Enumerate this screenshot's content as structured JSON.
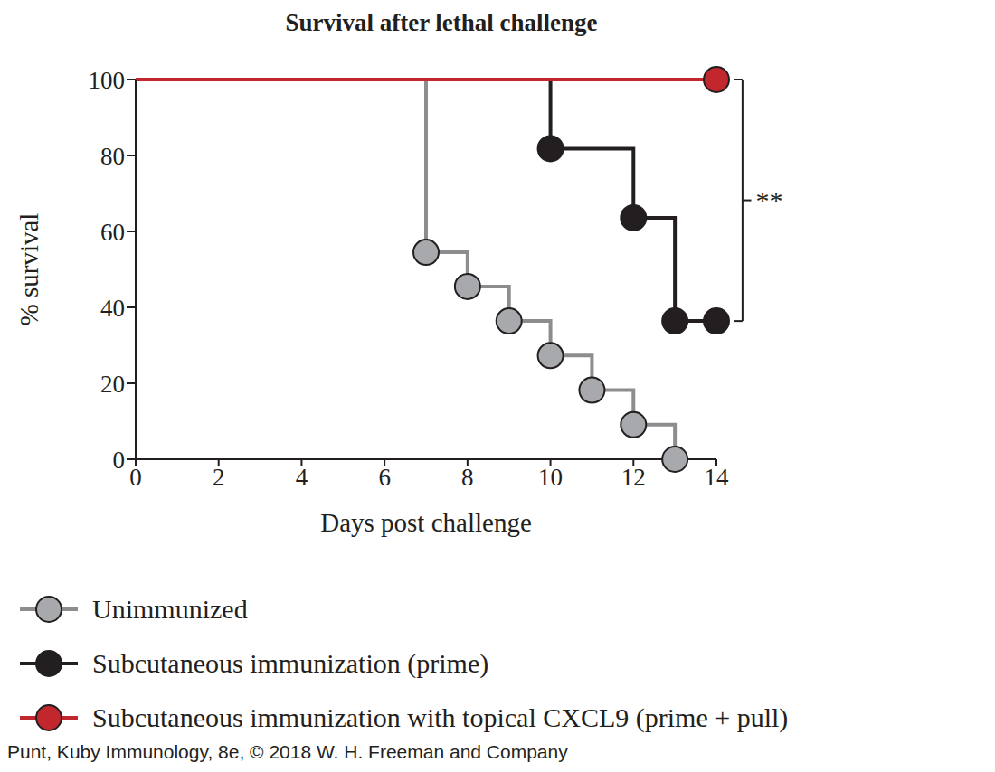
{
  "chart_data": {
    "type": "line",
    "title": "Survival after lethal challenge",
    "x_label": "Days post challenge",
    "y_label": "% survival",
    "xlim": [
      0,
      14
    ],
    "xticks": [
      0,
      2,
      4,
      6,
      8,
      10,
      12,
      14
    ],
    "ylim": [
      0,
      100
    ],
    "yticks": [
      0,
      20,
      40,
      60,
      80,
      100
    ],
    "grid": false,
    "legend": "bottom",
    "line_style": "step",
    "marker": "circle",
    "series": [
      {
        "name": "Unimmunized",
        "color": "#8d8d8f",
        "x": [
          0,
          7,
          8,
          9,
          10,
          11,
          12,
          13
        ],
        "values": [
          100,
          54.5,
          45.5,
          36.4,
          27.3,
          18.2,
          9.1,
          0
        ]
      },
      {
        "name": "Subcutaneous immunization (prime)",
        "color": "#231f20",
        "x": [
          0,
          10,
          12,
          13,
          14
        ],
        "values": [
          100,
          81.8,
          63.6,
          36.4,
          36.4
        ]
      },
      {
        "name": "Subcutaneous immunization with topical CXCL9 (prime + pull)",
        "color": "#c1272d",
        "x": [
          0,
          14
        ],
        "values": [
          100,
          100
        ]
      }
    ],
    "annotations": [
      {
        "text": "**"
      }
    ],
    "source": "Punt, Kuby Immunology, 8e, © 2018 W. H. Freeman and Company"
  }
}
